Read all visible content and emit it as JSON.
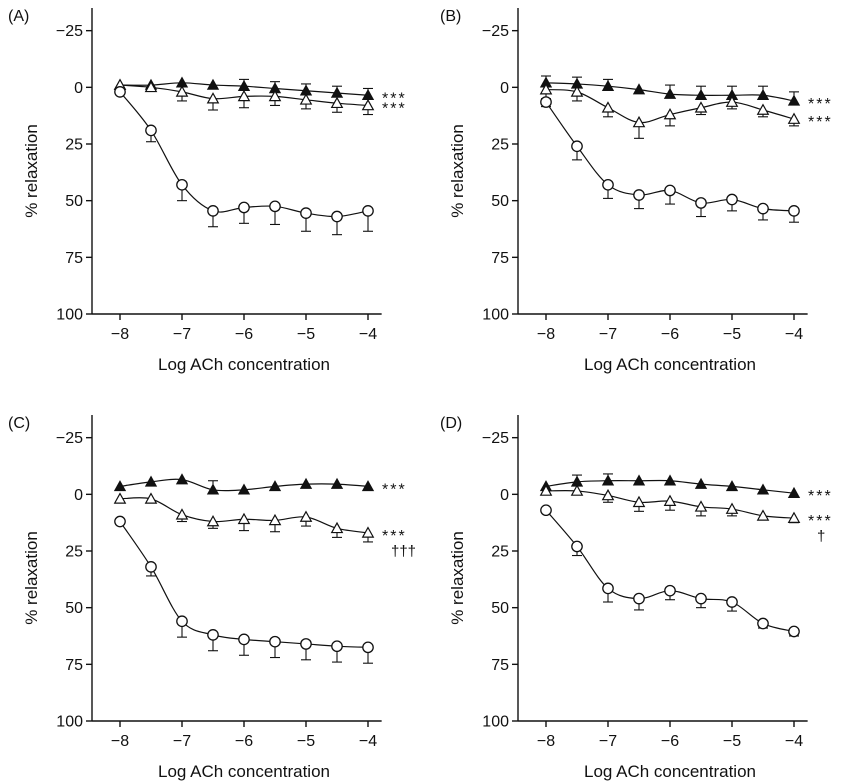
{
  "figure": {
    "background": "#ffffff",
    "ink": "#111111"
  },
  "chart_data": [
    {
      "panel": "(A)",
      "type": "line",
      "xlabel": "Log ACh concentration",
      "ylabel": "% relaxation",
      "xlim": [
        -8.3,
        -3.7
      ],
      "ylim": [
        100,
        -35
      ],
      "y_inverted": true,
      "xticks": [
        -8,
        -7,
        -6,
        -5,
        -4
      ],
      "xtick_labels": [
        "−8",
        "−7",
        "−6",
        "−5",
        "−4"
      ],
      "yticks": [
        -25,
        0,
        25,
        50,
        75,
        100
      ],
      "ytick_labels": [
        "−25",
        "0",
        "25",
        "50",
        "75",
        "100"
      ],
      "grid": false,
      "x": [
        -8,
        -7.5,
        -7,
        -6.5,
        -6,
        -5.5,
        -5,
        -4.5,
        -4
      ],
      "series": [
        {
          "marker": "filled-triangle",
          "values": [
            -1,
            -1,
            -2,
            -1,
            -0.5,
            0.5,
            1.5,
            2.5,
            3.5
          ],
          "err": [
            0,
            0,
            0,
            0,
            3,
            3,
            3,
            3,
            3
          ],
          "annotation": "***"
        },
        {
          "marker": "open-triangle",
          "values": [
            -1,
            0,
            2,
            5,
            4,
            4,
            5.5,
            7,
            8
          ],
          "err": [
            0,
            0,
            4,
            5,
            5,
            4,
            4,
            4,
            4
          ],
          "annotation": "***"
        },
        {
          "marker": "open-circle",
          "values": [
            2,
            19,
            43,
            54.5,
            53,
            52.5,
            55.5,
            57,
            54.5
          ],
          "err": [
            0,
            5,
            7,
            7,
            7,
            8,
            8,
            8,
            9
          ],
          "annotation": ""
        }
      ]
    },
    {
      "panel": "(B)",
      "type": "line",
      "xlabel": "Log ACh concentration",
      "ylabel": "% relaxation",
      "xlim": [
        -8.3,
        -3.7
      ],
      "ylim": [
        100,
        -35
      ],
      "y_inverted": true,
      "xticks": [
        -8,
        -7,
        -6,
        -5,
        -4
      ],
      "xtick_labels": [
        "−8",
        "−7",
        "−6",
        "−5",
        "−4"
      ],
      "yticks": [
        -25,
        0,
        25,
        50,
        75,
        100
      ],
      "ytick_labels": [
        "−25",
        "0",
        "25",
        "50",
        "75",
        "100"
      ],
      "grid": false,
      "x": [
        -8,
        -7.5,
        -7,
        -6.5,
        -6,
        -5.5,
        -5,
        -4.5,
        -4
      ],
      "series": [
        {
          "marker": "filled-triangle",
          "values": [
            -2,
            -1.5,
            -0.5,
            1,
            3,
            3.5,
            3.5,
            3.5,
            6
          ],
          "err": [
            3,
            3,
            3,
            0,
            4,
            4,
            4,
            4,
            4
          ],
          "annotation": "***"
        },
        {
          "marker": "open-triangle",
          "values": [
            1,
            2,
            9,
            15.5,
            12,
            9,
            6.5,
            10,
            14
          ],
          "err": [
            4,
            4,
            4,
            7,
            5,
            3,
            3,
            3,
            3
          ],
          "annotation": "***"
        },
        {
          "marker": "open-circle",
          "values": [
            6.5,
            26,
            43,
            47.5,
            45.5,
            51,
            49.5,
            53.5,
            54.5
          ],
          "err": [
            2,
            6,
            6,
            6,
            6,
            6,
            5,
            5,
            5
          ],
          "annotation": ""
        }
      ]
    },
    {
      "panel": "(C)",
      "type": "line",
      "xlabel": "Log ACh concentration",
      "ylabel": "% relaxation",
      "xlim": [
        -8.3,
        -3.7
      ],
      "ylim": [
        100,
        -35
      ],
      "y_inverted": true,
      "xticks": [
        -8,
        -7,
        -6,
        -5,
        -4
      ],
      "xtick_labels": [
        "−8",
        "−7",
        "−6",
        "−5",
        "−4"
      ],
      "yticks": [
        -25,
        0,
        25,
        50,
        75,
        100
      ],
      "ytick_labels": [
        "−25",
        "0",
        "25",
        "50",
        "75",
        "100"
      ],
      "grid": false,
      "x": [
        -8,
        -7.5,
        -7,
        -6.5,
        -6,
        -5.5,
        -5,
        -4.5,
        -4
      ],
      "series": [
        {
          "marker": "filled-triangle",
          "values": [
            -3.5,
            -5.5,
            -6.5,
            -2,
            -2,
            -3.5,
            -4.5,
            -4.5,
            -3.5
          ],
          "err": [
            0,
            0,
            0,
            4,
            0,
            0,
            0,
            0,
            0
          ],
          "annotation": "***"
        },
        {
          "marker": "open-triangle",
          "values": [
            2,
            2,
            9,
            12,
            11,
            11.5,
            10,
            15,
            17
          ],
          "err": [
            0,
            0,
            3,
            3,
            5,
            5,
            4,
            4,
            4
          ],
          "annotation": "***\n†††"
        },
        {
          "marker": "open-circle",
          "values": [
            12,
            32,
            56,
            62,
            64,
            65,
            66,
            67,
            67.5
          ],
          "err": [
            0,
            4,
            7,
            7,
            7,
            7,
            7,
            7,
            7
          ],
          "annotation": ""
        }
      ]
    },
    {
      "panel": "(D)",
      "type": "line",
      "xlabel": "Log ACh concentration",
      "ylabel": "% relaxation",
      "xlim": [
        -8.3,
        -3.7
      ],
      "ylim": [
        100,
        -35
      ],
      "y_inverted": true,
      "xticks": [
        -8,
        -7,
        -6,
        -5,
        -4
      ],
      "xtick_labels": [
        "−8",
        "−7",
        "−6",
        "−5",
        "−4"
      ],
      "yticks": [
        -25,
        0,
        25,
        50,
        75,
        100
      ],
      "ytick_labels": [
        "−25",
        "0",
        "25",
        "50",
        "75",
        "100"
      ],
      "grid": false,
      "x": [
        -8,
        -7.5,
        -7,
        -6.5,
        -6,
        -5.5,
        -5,
        -4.5,
        -4
      ],
      "series": [
        {
          "marker": "filled-triangle",
          "values": [
            -3.5,
            -5.5,
            -6,
            -6,
            -6,
            -4.5,
            -3.5,
            -2,
            -0.5
          ],
          "err": [
            0,
            3,
            3,
            0,
            0,
            0,
            0,
            0,
            0
          ],
          "annotation": "***"
        },
        {
          "marker": "open-triangle",
          "values": [
            -1.5,
            -1.5,
            0.5,
            3.5,
            3,
            5.5,
            6.5,
            9.5,
            10.5
          ],
          "err": [
            0,
            0,
            3,
            4,
            4,
            4,
            3,
            0,
            2
          ],
          "annotation": "***\n†"
        },
        {
          "marker": "open-circle",
          "values": [
            7,
            23,
            41.5,
            46,
            42.5,
            46,
            47.5,
            57,
            60.5
          ],
          "err": [
            0,
            4,
            6,
            5,
            4,
            4,
            4,
            2,
            2
          ],
          "annotation": ""
        }
      ]
    }
  ]
}
